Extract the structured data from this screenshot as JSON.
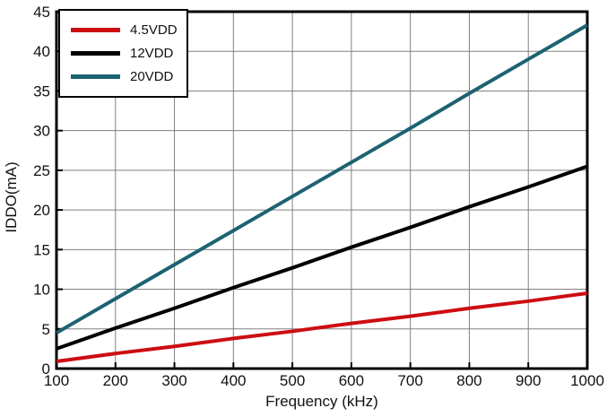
{
  "chart_data": {
    "type": "line",
    "title": "",
    "xlabel": "Frequency (kHz)",
    "ylabel": "IDDO(mA)",
    "x": [
      100,
      200,
      300,
      400,
      500,
      600,
      700,
      800,
      900,
      1000
    ],
    "xlim": [
      100,
      1000
    ],
    "ylim": [
      0,
      45
    ],
    "x_ticks": [
      100,
      200,
      300,
      400,
      500,
      600,
      700,
      800,
      900,
      1000
    ],
    "y_ticks": [
      0,
      5,
      10,
      15,
      20,
      25,
      30,
      35,
      40,
      45
    ],
    "grid": true,
    "grid_color": "#808080",
    "border_color": "#000000",
    "background_color": "#ffffff",
    "legend_position": "top-left",
    "series": [
      {
        "name": "4.5VDD",
        "color": "#cd0d12",
        "values": [
          0.9,
          1.9,
          2.8,
          3.8,
          4.7,
          5.7,
          6.6,
          7.6,
          8.5,
          9.5
        ]
      },
      {
        "name": "12VDD",
        "color": "#000000",
        "values": [
          2.5,
          5.1,
          7.6,
          10.2,
          12.7,
          15.3,
          17.8,
          20.4,
          22.9,
          25.5
        ]
      },
      {
        "name": "20VDD",
        "color": "#1d6272",
        "values": [
          4.5,
          8.8,
          13.1,
          17.4,
          21.7,
          26.0,
          30.3,
          34.7,
          39.0,
          43.3
        ]
      }
    ]
  }
}
